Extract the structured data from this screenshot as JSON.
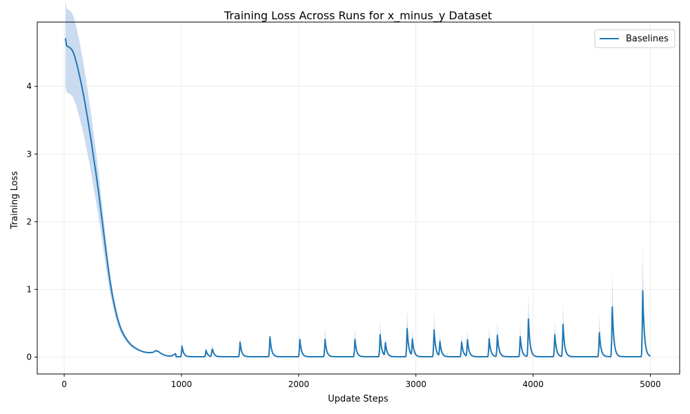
{
  "chart_data": {
    "type": "line",
    "title": "Training Loss Across Runs for x_minus_y Dataset",
    "xlabel": "Update Steps",
    "ylabel": "Training Loss",
    "xlim": [
      -230,
      5250
    ],
    "ylim": [
      -0.25,
      4.95
    ],
    "xticks": [
      0,
      1000,
      2000,
      3000,
      4000,
      5000
    ],
    "yticks": [
      0,
      1,
      2,
      3,
      4
    ],
    "grid": true,
    "legend": {
      "position": "top-right",
      "entries": [
        "Baselines"
      ]
    },
    "series": [
      {
        "name": "Baselines",
        "color": "#1f77b4",
        "band_color": "#aec7e8",
        "decay": {
          "x": [
            10,
            20,
            50,
            70,
            90,
            110,
            130,
            150,
            170,
            190,
            210,
            230,
            250,
            270,
            290,
            310,
            330,
            350,
            370,
            390,
            410,
            430,
            450,
            470,
            490,
            510,
            540,
            570,
            600,
            640,
            680,
            720,
            760,
            780,
            800,
            820,
            840,
            860,
            880,
            900,
            920,
            950
          ],
          "y": [
            4.71,
            4.6,
            4.57,
            4.53,
            4.44,
            4.31,
            4.16,
            4.0,
            3.82,
            3.62,
            3.41,
            3.2,
            2.96,
            2.73,
            2.48,
            2.2,
            1.93,
            1.65,
            1.38,
            1.13,
            0.92,
            0.75,
            0.6,
            0.48,
            0.39,
            0.32,
            0.24,
            0.18,
            0.14,
            0.1,
            0.075,
            0.065,
            0.07,
            0.095,
            0.085,
            0.06,
            0.04,
            0.025,
            0.018,
            0.015,
            0.02,
            0.05
          ]
        },
        "spikes": [
          {
            "x": 1005,
            "peak": 0.16,
            "band": 0.22
          },
          {
            "x": 1210,
            "peak": 0.1,
            "band": 0.16
          },
          {
            "x": 1262,
            "peak": 0.14,
            "band": 0.22
          },
          {
            "x": 1500,
            "peak": 0.22,
            "band": 0.3
          },
          {
            "x": 1755,
            "peak": 0.3,
            "band": 0.35
          },
          {
            "x": 2010,
            "peak": 0.26,
            "band": 0.34
          },
          {
            "x": 2225,
            "peak": 0.26,
            "band": 0.45
          },
          {
            "x": 2480,
            "peak": 0.26,
            "band": 0.44
          },
          {
            "x": 2695,
            "peak": 0.33,
            "band": 0.55
          },
          {
            "x": 2740,
            "peak": 0.2,
            "band": 0.28
          },
          {
            "x": 2925,
            "peak": 0.42,
            "band": 0.72
          },
          {
            "x": 2970,
            "peak": 0.25,
            "band": 0.4
          },
          {
            "x": 3155,
            "peak": 0.4,
            "band": 0.68
          },
          {
            "x": 3205,
            "peak": 0.22,
            "band": 0.35
          },
          {
            "x": 3390,
            "peak": 0.22,
            "band": 0.35
          },
          {
            "x": 3440,
            "peak": 0.25,
            "band": 0.4
          },
          {
            "x": 3625,
            "peak": 0.27,
            "band": 0.45
          },
          {
            "x": 3695,
            "peak": 0.32,
            "band": 0.52
          },
          {
            "x": 3890,
            "peak": 0.3,
            "band": 0.5
          },
          {
            "x": 3960,
            "peak": 0.56,
            "band": 0.93
          },
          {
            "x": 4185,
            "peak": 0.33,
            "band": 0.55
          },
          {
            "x": 4255,
            "peak": 0.48,
            "band": 0.8
          },
          {
            "x": 4565,
            "peak": 0.36,
            "band": 0.62
          },
          {
            "x": 4675,
            "peak": 0.74,
            "band": 1.25
          },
          {
            "x": 4935,
            "peak": 0.98,
            "band": 1.67
          }
        ]
      }
    ]
  }
}
